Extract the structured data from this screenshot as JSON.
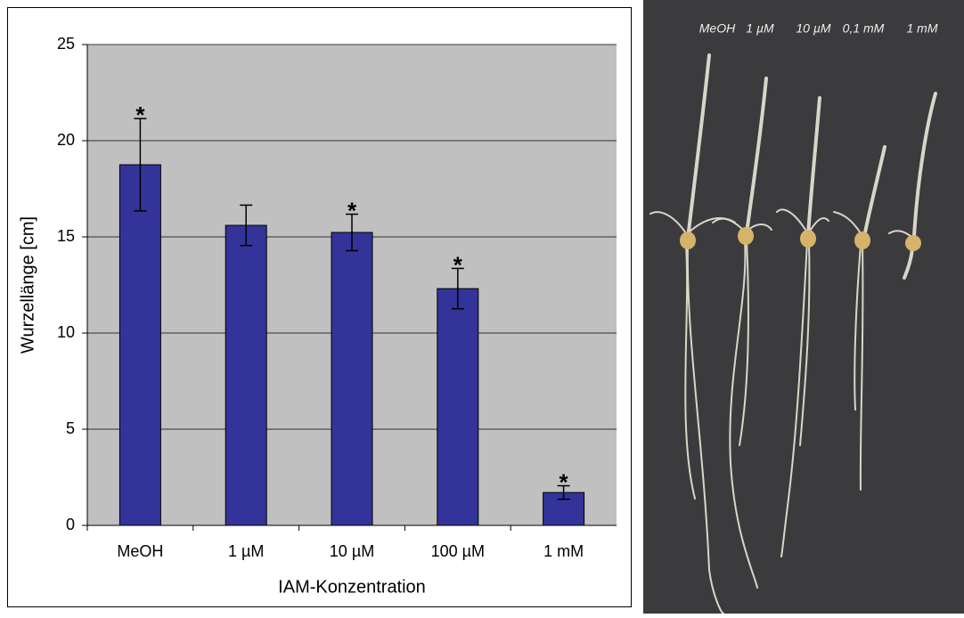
{
  "chart_data": {
    "type": "bar",
    "y_label": "Wurzellänge [cm]",
    "x_label": "IAM-Konzentration",
    "categories": [
      "MeOH",
      "1 µM",
      "10 µM",
      "100 µM",
      "1 mM"
    ],
    "values": [
      18.75,
      15.6,
      15.23,
      12.31,
      1.71
    ],
    "errors": [
      2.4,
      1.05,
      0.95,
      1.05,
      0.35
    ],
    "significance": [
      "*",
      null,
      "*",
      "*",
      "*"
    ],
    "color": "#333399",
    "ylim": [
      0,
      25
    ],
    "yticks": [
      0,
      5,
      10,
      15,
      20,
      25
    ],
    "grid": true
  },
  "photo": {
    "labels": [
      "MeOH",
      "1 µM",
      "10 µM",
      "0,1 mM",
      "1 mM"
    ]
  }
}
